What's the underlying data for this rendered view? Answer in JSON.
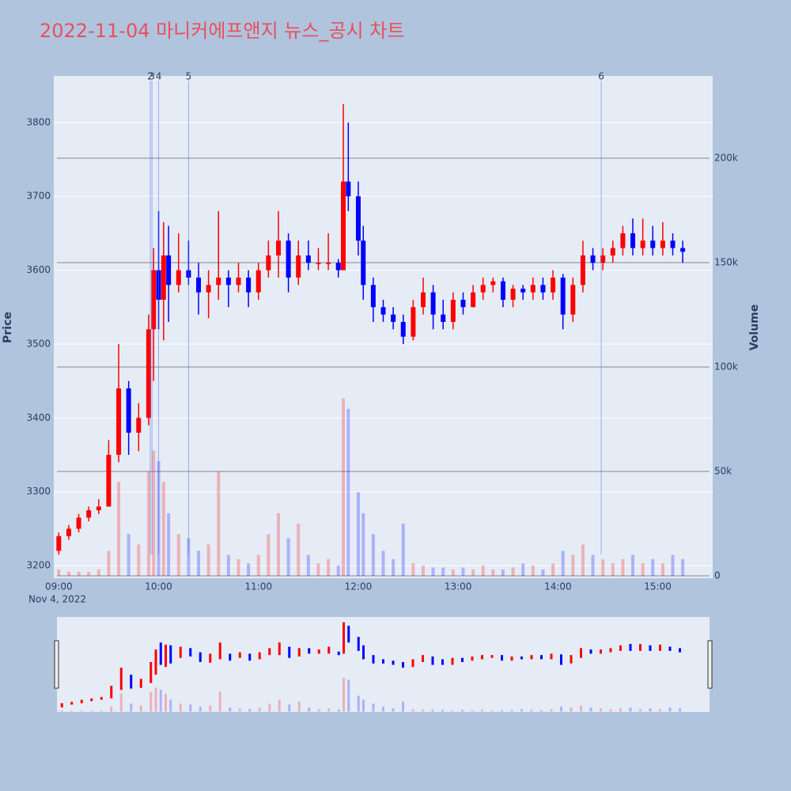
{
  "chart_data": {
    "type": "candlestick",
    "title": "2022-11-04 마니커에프앤지 뉴스_공시 차트",
    "y_label": "Price",
    "y2_label": "Volume",
    "x_sublabel": "Nov 4, 2022",
    "up_color": "#ff0000",
    "down_color": "#0000ff",
    "x": [
      "09:00",
      "09:06",
      "09:12",
      "09:18",
      "09:24",
      "09:30",
      "09:36",
      "09:42",
      "09:48",
      "09:54",
      "09:57",
      "10:00",
      "10:03",
      "10:06",
      "10:12",
      "10:18",
      "10:24",
      "10:30",
      "10:36",
      "10:42",
      "10:48",
      "10:54",
      "11:00",
      "11:06",
      "11:12",
      "11:18",
      "11:24",
      "11:30",
      "11:36",
      "11:42",
      "11:48",
      "11:51",
      "11:54",
      "12:00",
      "12:03",
      "12:09",
      "12:15",
      "12:21",
      "12:27",
      "12:33",
      "12:39",
      "12:45",
      "12:51",
      "12:57",
      "13:03",
      "13:09",
      "13:15",
      "13:21",
      "13:27",
      "13:33",
      "13:39",
      "13:45",
      "13:51",
      "13:57",
      "14:03",
      "14:09",
      "14:15",
      "14:21",
      "14:27",
      "14:33",
      "14:39",
      "14:45",
      "14:51",
      "14:57",
      "15:03",
      "15:09",
      "15:15"
    ],
    "open": [
      3220,
      3240,
      3250,
      3265,
      3275,
      3280,
      3350,
      3440,
      3380,
      3400,
      3520,
      3600,
      3560,
      3620,
      3580,
      3600,
      3590,
      3570,
      3580,
      3590,
      3580,
      3590,
      3570,
      3600,
      3620,
      3640,
      3590,
      3620,
      3610,
      3610,
      3610,
      3600,
      3720,
      3700,
      3640,
      3580,
      3550,
      3540,
      3530,
      3510,
      3550,
      3570,
      3540,
      3530,
      3560,
      3550,
      3570,
      3580,
      3585,
      3560,
      3575,
      3570,
      3580,
      3570,
      3590,
      3540,
      3580,
      3620,
      3610,
      3620,
      3630,
      3650,
      3630,
      3640,
      3630,
      3640,
      3630
    ],
    "high": [
      3245,
      3255,
      3270,
      3280,
      3290,
      3370,
      3500,
      3450,
      3420,
      3540,
      3630,
      3680,
      3665,
      3660,
      3650,
      3640,
      3610,
      3600,
      3680,
      3600,
      3610,
      3600,
      3610,
      3640,
      3680,
      3650,
      3640,
      3640,
      3630,
      3650,
      3615,
      3825,
      3800,
      3720,
      3660,
      3590,
      3560,
      3550,
      3540,
      3560,
      3590,
      3580,
      3560,
      3570,
      3570,
      3580,
      3590,
      3590,
      3590,
      3580,
      3580,
      3590,
      3590,
      3600,
      3595,
      3590,
      3640,
      3630,
      3630,
      3640,
      3660,
      3670,
      3670,
      3660,
      3665,
      3650,
      3640
    ],
    "low": [
      3215,
      3235,
      3245,
      3260,
      3270,
      3280,
      3340,
      3350,
      3355,
      3390,
      3450,
      3520,
      3505,
      3530,
      3570,
      3580,
      3540,
      3535,
      3560,
      3550,
      3570,
      3550,
      3560,
      3590,
      3590,
      3570,
      3580,
      3600,
      3600,
      3600,
      3590,
      3600,
      3680,
      3620,
      3560,
      3530,
      3530,
      3520,
      3500,
      3505,
      3540,
      3520,
      3520,
      3520,
      3540,
      3550,
      3560,
      3570,
      3550,
      3550,
      3560,
      3560,
      3560,
      3560,
      3520,
      3530,
      3570,
      3600,
      3600,
      3610,
      3620,
      3620,
      3620,
      3620,
      3620,
      3620,
      3610
    ],
    "close": [
      3240,
      3250,
      3265,
      3275,
      3280,
      3350,
      3440,
      3380,
      3400,
      3520,
      3600,
      3560,
      3620,
      3580,
      3600,
      3590,
      3570,
      3580,
      3590,
      3580,
      3590,
      3570,
      3600,
      3620,
      3640,
      3590,
      3620,
      3610,
      3610,
      3610,
      3600,
      3720,
      3700,
      3640,
      3580,
      3550,
      3540,
      3530,
      3510,
      3550,
      3570,
      3540,
      3530,
      3560,
      3550,
      3570,
      3580,
      3585,
      3560,
      3575,
      3570,
      3580,
      3570,
      3590,
      3540,
      3580,
      3620,
      3610,
      3620,
      3630,
      3650,
      3630,
      3640,
      3630,
      3640,
      3630,
      3625
    ],
    "volume": [
      3000,
      2000,
      2000,
      2000,
      3000,
      12000,
      45000,
      20000,
      15000,
      50000,
      60000,
      55000,
      45000,
      30000,
      20000,
      18000,
      12000,
      15000,
      50000,
      10000,
      8000,
      6000,
      10000,
      20000,
      30000,
      18000,
      25000,
      10000,
      6000,
      8000,
      5000,
      85000,
      80000,
      40000,
      30000,
      20000,
      12000,
      8000,
      25000,
      6000,
      5000,
      4000,
      4000,
      3000,
      4000,
      3000,
      5000,
      3000,
      3000,
      4000,
      6000,
      5000,
      3000,
      6000,
      12000,
      10000,
      15000,
      10000,
      8000,
      6000,
      8000,
      10000,
      6000,
      8000,
      6000,
      10000,
      8000
    ],
    "xlim": [
      "08:57",
      "15:33"
    ],
    "xticks": [
      "09:00",
      "10:00",
      "11:00",
      "12:00",
      "13:00",
      "14:00",
      "15:00"
    ],
    "ylim": [
      3183,
      3863
    ],
    "yticks": [
      3200,
      3300,
      3400,
      3500,
      3600,
      3700,
      3800
    ],
    "y2lim": [
      -1136,
      239400
    ],
    "y2ticks": [
      0,
      {
        "value": 50000,
        "label": "50k"
      },
      {
        "value": 100000,
        "label": "100k"
      },
      {
        "value": 150000,
        "label": "150k"
      },
      {
        "value": 200000,
        "label": "200k"
      }
    ],
    "news": [
      {
        "label": 2,
        "x": "09:55"
      },
      {
        "label": 3,
        "x": "09:56"
      },
      {
        "label": 4,
        "x": "10:00"
      },
      {
        "label": 5,
        "x": "10:18"
      },
      {
        "label": 6,
        "x": "14:26"
      }
    ],
    "grid": true
  }
}
